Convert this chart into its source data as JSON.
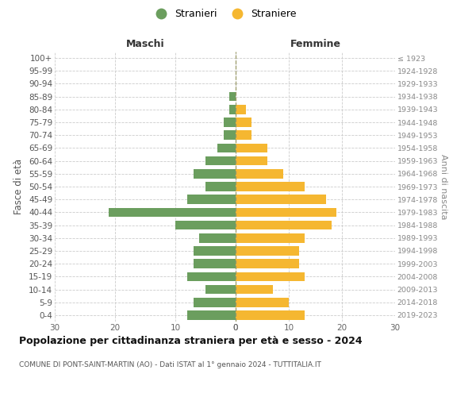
{
  "age_groups": [
    "0-4",
    "5-9",
    "10-14",
    "15-19",
    "20-24",
    "25-29",
    "30-34",
    "35-39",
    "40-44",
    "45-49",
    "50-54",
    "55-59",
    "60-64",
    "65-69",
    "70-74",
    "75-79",
    "80-84",
    "85-89",
    "90-94",
    "95-99",
    "100+"
  ],
  "birth_years": [
    "2019-2023",
    "2014-2018",
    "2009-2013",
    "2004-2008",
    "1999-2003",
    "1994-1998",
    "1989-1993",
    "1984-1988",
    "1979-1983",
    "1974-1978",
    "1969-1973",
    "1964-1968",
    "1959-1963",
    "1954-1958",
    "1949-1953",
    "1944-1948",
    "1939-1943",
    "1934-1938",
    "1929-1933",
    "1924-1928",
    "≤ 1923"
  ],
  "males": [
    8,
    7,
    5,
    8,
    7,
    7,
    6,
    10,
    21,
    8,
    5,
    7,
    5,
    3,
    2,
    2,
    1,
    1,
    0,
    0,
    0
  ],
  "females": [
    13,
    10,
    7,
    13,
    12,
    12,
    13,
    18,
    19,
    17,
    13,
    9,
    6,
    6,
    3,
    3,
    2,
    0,
    0,
    0,
    0
  ],
  "male_color": "#6b9e5e",
  "female_color": "#f5b731",
  "grid_color": "#cccccc",
  "background_color": "#ffffff",
  "title": "Popolazione per cittadinanza straniera per età e sesso - 2024",
  "subtitle": "COMUNE DI PONT-SAINT-MARTIN (AO) - Dati ISTAT al 1° gennaio 2024 - TUTTITALIA.IT",
  "ylabel_left": "Fasce di età",
  "ylabel_right": "Anni di nascita",
  "legend_male": "Stranieri",
  "legend_female": "Straniere",
  "header_left": "Maschi",
  "header_right": "Femmine",
  "xlim": 30,
  "dashed_line_color": "#999966"
}
